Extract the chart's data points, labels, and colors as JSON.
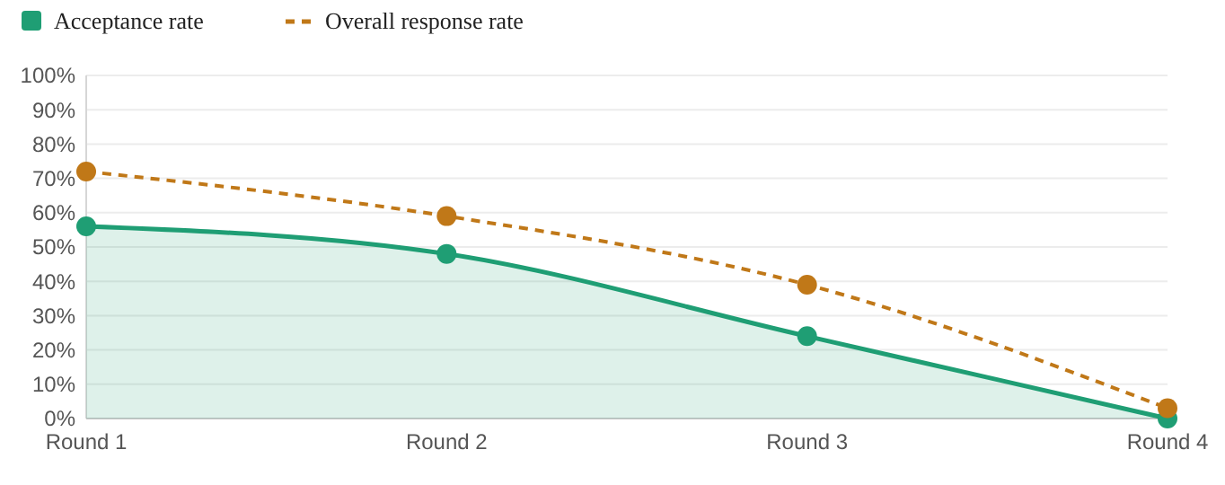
{
  "chart_data": {
    "type": "line",
    "categories": [
      "Round 1",
      "Round 2",
      "Round 3",
      "Round 4"
    ],
    "series": [
      {
        "name": "Acceptance rate",
        "type": "area",
        "color": "#1f9e74",
        "values": [
          56,
          48,
          24,
          0
        ],
        "line_style": "solid"
      },
      {
        "name": "Overall response rate",
        "color": "#c07818",
        "values": [
          72,
          59,
          39,
          3
        ],
        "line_style": "dashed"
      }
    ],
    "ylim": [
      0,
      100
    ],
    "yticks": [
      {
        "value": 0,
        "label": "0%"
      },
      {
        "value": 10,
        "label": "10%"
      },
      {
        "value": 20,
        "label": "20%"
      },
      {
        "value": 30,
        "label": "30%"
      },
      {
        "value": 40,
        "label": "40%"
      },
      {
        "value": 50,
        "label": "50%"
      },
      {
        "value": 60,
        "label": "60%"
      },
      {
        "value": 70,
        "label": "70%"
      },
      {
        "value": 80,
        "label": "80%"
      },
      {
        "value": 90,
        "label": "90%"
      },
      {
        "value": 100,
        "label": "100%"
      }
    ],
    "grid": "y",
    "legend": "top left",
    "marker": "circle"
  }
}
